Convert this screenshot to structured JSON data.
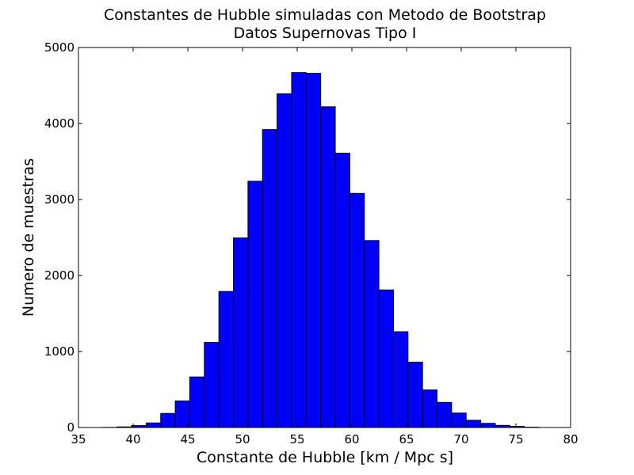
{
  "chart_data": {
    "type": "bar",
    "title": "Constantes de Hubble simuladas con Metodo de Bootstrap",
    "subtitle": "Datos Supernovas Tipo I",
    "xlabel": "Constante de Hubble [km / Mpc s]",
    "ylabel": "Numero de muestras",
    "xlim": [
      35,
      80
    ],
    "ylim": [
      0,
      5000
    ],
    "xticks": [
      "35",
      "40",
      "45",
      "50",
      "55",
      "60",
      "65",
      "70",
      "75",
      "80"
    ],
    "yticks": [
      "0",
      "1000",
      "2000",
      "3000",
      "4000",
      "5000"
    ],
    "grid": false,
    "bar_color": "#0000ff",
    "edge_color": "#000000",
    "bins": [
      {
        "x0": 37.2,
        "x1": 38.53,
        "count": 2
      },
      {
        "x0": 38.53,
        "x1": 39.86,
        "count": 8
      },
      {
        "x0": 39.86,
        "x1": 41.19,
        "count": 25
      },
      {
        "x0": 41.19,
        "x1": 42.52,
        "count": 60
      },
      {
        "x0": 42.52,
        "x1": 43.85,
        "count": 185
      },
      {
        "x0": 43.85,
        "x1": 45.18,
        "count": 350
      },
      {
        "x0": 45.18,
        "x1": 46.51,
        "count": 665
      },
      {
        "x0": 46.51,
        "x1": 47.84,
        "count": 1120
      },
      {
        "x0": 47.84,
        "x1": 49.17,
        "count": 1790
      },
      {
        "x0": 49.17,
        "x1": 50.5,
        "count": 2495
      },
      {
        "x0": 50.5,
        "x1": 51.83,
        "count": 3240
      },
      {
        "x0": 51.83,
        "x1": 53.16,
        "count": 3920
      },
      {
        "x0": 53.16,
        "x1": 54.49,
        "count": 4390
      },
      {
        "x0": 54.49,
        "x1": 55.82,
        "count": 4670
      },
      {
        "x0": 55.82,
        "x1": 57.15,
        "count": 4660
      },
      {
        "x0": 57.15,
        "x1": 58.48,
        "count": 4220
      },
      {
        "x0": 58.48,
        "x1": 59.81,
        "count": 3610
      },
      {
        "x0": 59.81,
        "x1": 61.14,
        "count": 3080
      },
      {
        "x0": 61.14,
        "x1": 62.47,
        "count": 2460
      },
      {
        "x0": 62.47,
        "x1": 63.8,
        "count": 1810
      },
      {
        "x0": 63.8,
        "x1": 65.13,
        "count": 1260
      },
      {
        "x0": 65.13,
        "x1": 66.46,
        "count": 860
      },
      {
        "x0": 66.46,
        "x1": 67.79,
        "count": 495
      },
      {
        "x0": 67.79,
        "x1": 69.12,
        "count": 330
      },
      {
        "x0": 69.12,
        "x1": 70.45,
        "count": 190
      },
      {
        "x0": 70.45,
        "x1": 71.78,
        "count": 95
      },
      {
        "x0": 71.78,
        "x1": 73.11,
        "count": 55
      },
      {
        "x0": 73.11,
        "x1": 74.44,
        "count": 28
      },
      {
        "x0": 74.44,
        "x1": 75.77,
        "count": 15
      },
      {
        "x0": 75.77,
        "x1": 77.1,
        "count": 4
      }
    ]
  }
}
